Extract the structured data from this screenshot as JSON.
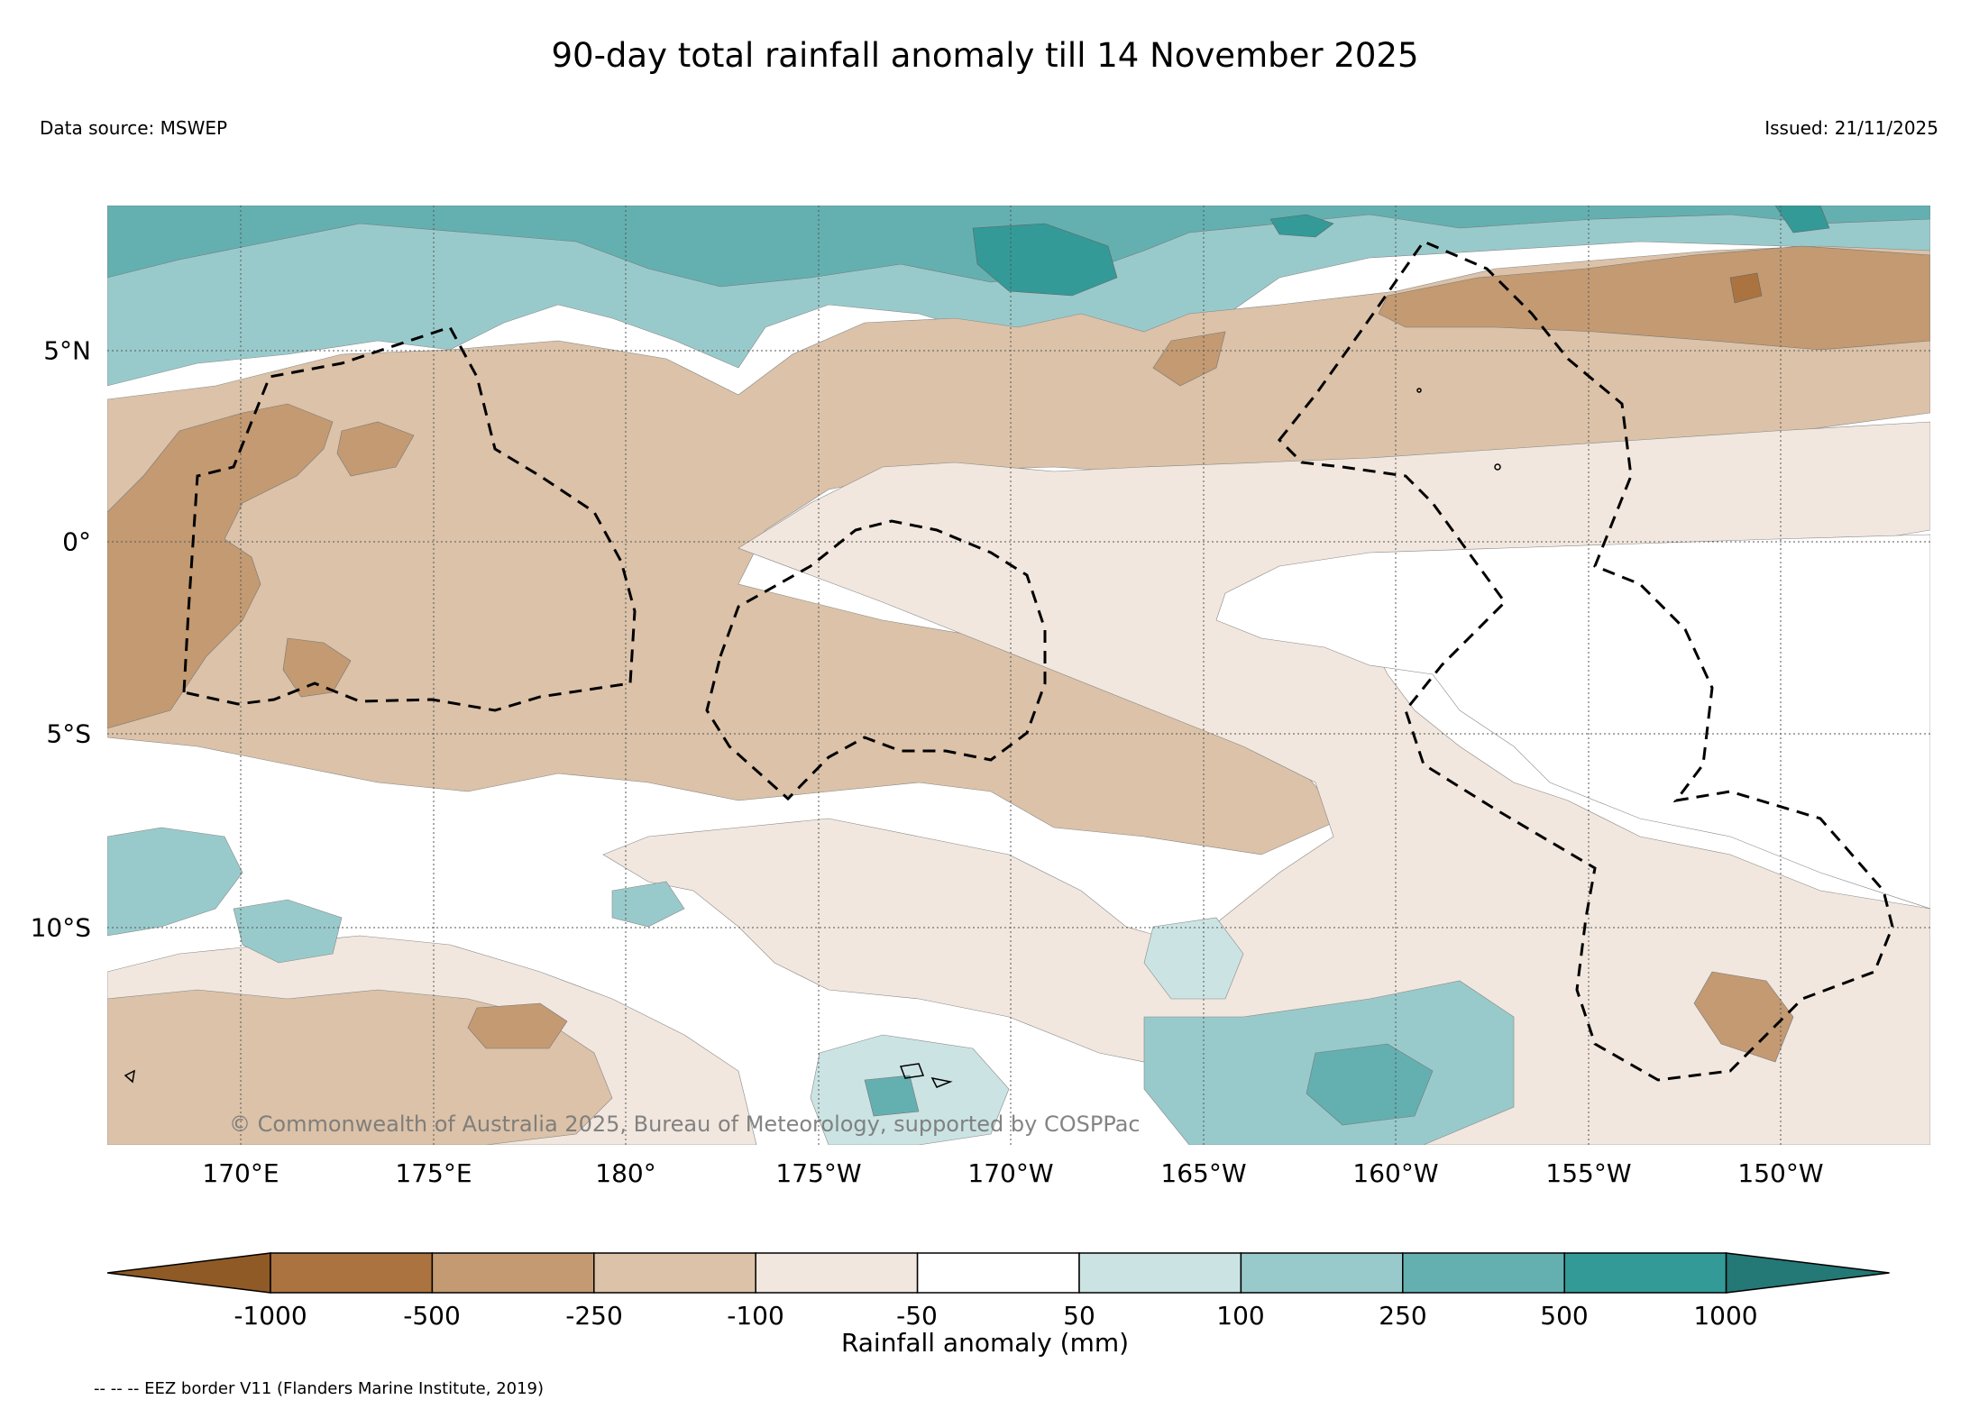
{
  "title": "90-day total rainfall anomaly till 14 November 2025",
  "data_source": "Data source: MSWEP",
  "issued": "Issued: 21/11/2025",
  "credit": "© Commonwealth of Australia 2025, Bureau of Meteorology, supported by COSPPac",
  "eez_note": "-- -- -- EEZ border V11 (Flanders Marine Institute, 2019)",
  "map": {
    "lon_ticks": [
      "170°E",
      "175°E",
      "180°",
      "175°W",
      "170°W",
      "165°W",
      "160°W",
      "155°W",
      "150°W"
    ],
    "lat_ticks": [
      "5°N",
      "0°",
      "5°S",
      "10°S"
    ]
  },
  "colorbar": {
    "title": "Rainfall anomaly (mm)",
    "levels": [
      "-1000",
      "-500",
      "-250",
      "-100",
      "-50",
      "50",
      "100",
      "250",
      "500",
      "1000"
    ],
    "colors": [
      "#8f5a25",
      "#ab7340",
      "#c39a72",
      "#dbc2a8",
      "#f1e7de",
      "#ffffff",
      "#cbe4e3",
      "#99cacb",
      "#64b0b1",
      "#339a97",
      "#247876"
    ]
  },
  "palette": {
    "dry4": "#ab7340",
    "dry3": "#c39a72",
    "dry2": "#dbc2a8",
    "dry1": "#f1e7de",
    "neutral": "#ffffff",
    "wet1": "#cbe4e3",
    "wet2": "#99cacb",
    "wet3": "#64b0b1",
    "wet4": "#339a97"
  }
}
